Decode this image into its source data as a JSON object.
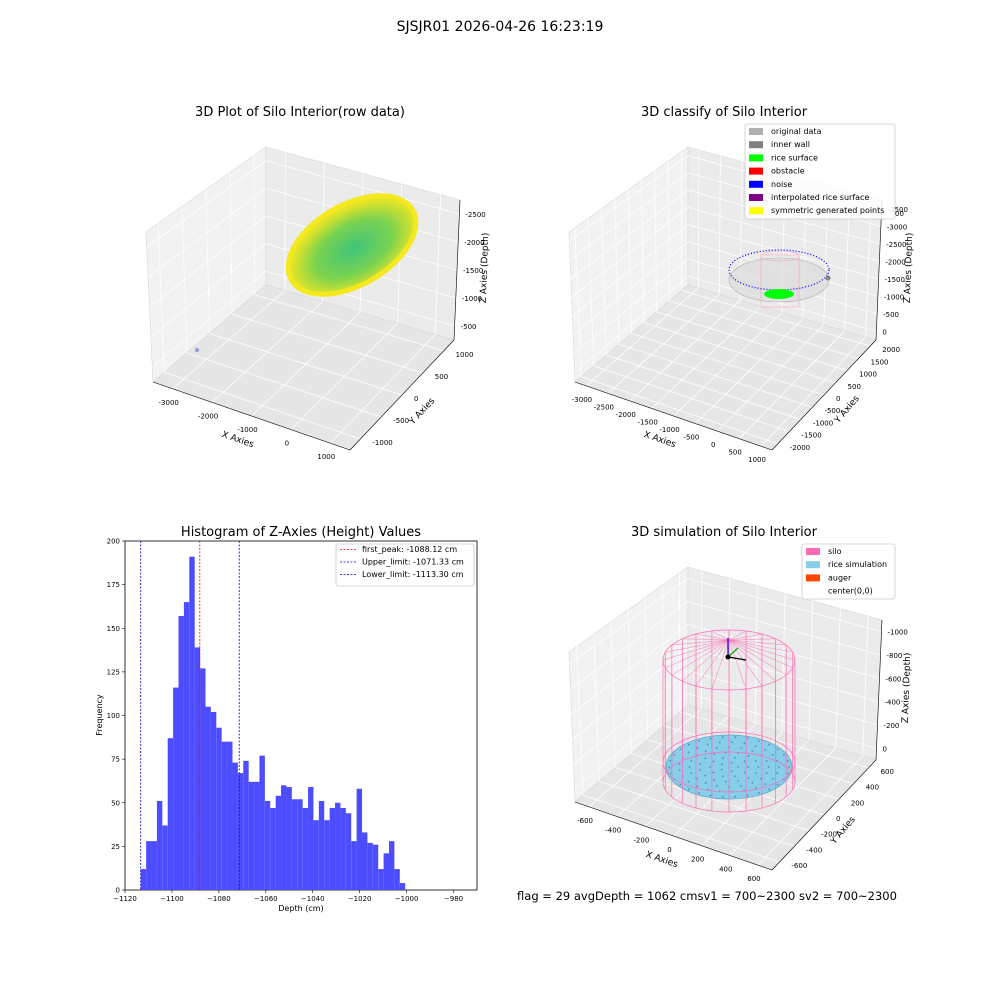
{
  "suptitle": "SJSJR01 2026-04-26 16:23:19",
  "status_line": "flag = 29  avgDepth = 1062 cmsv1 = 700~2300  sv2 = 700~2300",
  "colors": {
    "histogram_bar": "#4d4dff",
    "first_peak_line": "#ff0000",
    "limit_lines": "#0000cc",
    "surface_yellow": "#f4e81e",
    "surface_green": "#3ec47a",
    "silo": "#ff69b4",
    "rice_simulation": "#87ceeb",
    "auger": "#ff4500",
    "original_data": "#b0b0b0",
    "inner_wall": "#808080",
    "rice_surface": "#00ff00",
    "obstacle": "#ff0000",
    "noise": "#0000ff",
    "interpolated_rice_surface": "#800080",
    "symmetric_generated_points": "#ffff00"
  },
  "chart_data": [
    {
      "type": "scatter",
      "title": "3D Plot of Silo Interior(row data)",
      "xlabel": "X Axies",
      "ylabel": "Y Axies",
      "zlabel": "Z Axies (Depth)",
      "x_ticks": [
        "-3000",
        "-2000",
        "-1000",
        "0",
        "1000"
      ],
      "y_ticks": [
        "-1000",
        "-500",
        "0",
        "500",
        "1000"
      ],
      "z_ticks": [
        "-500",
        "-1000",
        "-1500",
        "-2000",
        "-2500"
      ]
    },
    {
      "type": "scatter",
      "title": "3D classify of Silo Interior",
      "xlabel": "X Axies",
      "ylabel": "Y Axies",
      "zlabel": "Z Axies (Depth)",
      "x_ticks": [
        "-3000",
        "-2500",
        "-2000",
        "-1500",
        "-1000",
        "-500",
        "0",
        "500",
        "1000"
      ],
      "y_ticks": [
        "-2000",
        "-1500",
        "-1000",
        "-500",
        "0",
        "500",
        "1000",
        "1500",
        "2000"
      ],
      "z_ticks": [
        "0",
        "-500",
        "-1000",
        "-1500",
        "-2000",
        "-2500",
        "-3000",
        "-3500"
      ],
      "z_ticks_extra": [
        "00"
      ],
      "legend_position": "top-right",
      "legend": [
        {
          "label": "original data",
          "color": "#b0b0b0"
        },
        {
          "label": "inner wall",
          "color": "#808080"
        },
        {
          "label": "rice surface",
          "color": "#00ff00"
        },
        {
          "label": "obstacle",
          "color": "#ff0000"
        },
        {
          "label": "noise",
          "color": "#0000ff"
        },
        {
          "label": "interpolated rice surface",
          "color": "#800080"
        },
        {
          "label": "symmetric generated points",
          "color": "#ffff00"
        }
      ]
    },
    {
      "type": "bar",
      "title": "Histogram of Z-Axies (Height) Values",
      "xlabel": "Depth (cm)",
      "ylabel": "Frequency",
      "xlim": [
        -1120,
        -970
      ],
      "ylim": [
        0,
        200
      ],
      "x_ticks": [
        -1120,
        -1100,
        -1080,
        -1060,
        -1040,
        -1020,
        -1000,
        -980
      ],
      "y_ticks": [
        0,
        25,
        50,
        75,
        100,
        125,
        150,
        175,
        200
      ],
      "bin_width": 2.3,
      "bin_start": -1113.3,
      "values": [
        12,
        28,
        28,
        51,
        37,
        87,
        116,
        157,
        165,
        191,
        139,
        127,
        105,
        102,
        93,
        85,
        85,
        73,
        67,
        74,
        62,
        62,
        77,
        51,
        47,
        54,
        60,
        59,
        52,
        52,
        47,
        59,
        40,
        51,
        40,
        47,
        50,
        47,
        44,
        28,
        58,
        33,
        27,
        26,
        12,
        21,
        28,
        12,
        4
      ],
      "lines": [
        {
          "label": "first_peak: -1088.12 cm",
          "x": -1088.12,
          "color": "#ff0000"
        },
        {
          "label": "Upper_limit: -1071.33 cm",
          "x": -1071.33,
          "color": "#0000cc"
        },
        {
          "label": "Lower_limit: -1113.30 cm",
          "x": -1113.3,
          "color": "#0000cc"
        }
      ],
      "legend_position": "top-right"
    },
    {
      "type": "scatter",
      "title": "3D simulation of Silo Interior",
      "xlabel": "X Axies",
      "ylabel": "Y Axies",
      "zlabel": "Z Axies (Depth)",
      "x_ticks": [
        "-600",
        "-400",
        "-200",
        "0",
        "200",
        "400",
        "600"
      ],
      "y_ticks": [
        "-600",
        "-400",
        "-200",
        "0",
        "200",
        "400",
        "600"
      ],
      "z_ticks": [
        "0",
        "-200",
        "-400",
        "-600",
        "-800",
        "-1000"
      ],
      "legend_position": "top-right",
      "legend": [
        {
          "label": "silo",
          "color": "#ff69b4"
        },
        {
          "label": "rice simulation",
          "color": "#87ceeb"
        },
        {
          "label": "auger",
          "color": "#ff4500"
        },
        {
          "label": "center(0,0)",
          "color": ""
        }
      ]
    }
  ]
}
